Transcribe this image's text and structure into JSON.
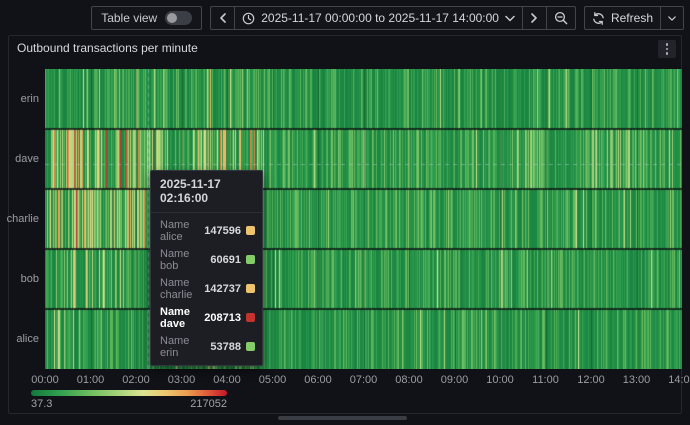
{
  "toolbar": {
    "table_view_label": "Table view",
    "time_range_label": "2025-11-17 00:00:00 to 2025-11-17 14:00:00",
    "refresh_label": "Refresh"
  },
  "panel": {
    "title": "Outbound transactions per minute"
  },
  "tooltip": {
    "timestamp": "2025-11-17 02:16:00",
    "rows": [
      {
        "label": "Name alice",
        "value": "147596",
        "color": "#eec36e",
        "highlight": false
      },
      {
        "label": "Name bob",
        "value": "60691",
        "color": "#84cc67",
        "highlight": false
      },
      {
        "label": "Name charlie",
        "value": "142737",
        "color": "#eec36e",
        "highlight": false
      },
      {
        "label": "Name dave",
        "value": "208713",
        "color": "#c2332d",
        "highlight": true
      },
      {
        "label": "Name erin",
        "value": "53788",
        "color": "#84cc67",
        "highlight": false
      }
    ]
  },
  "legend": {
    "min_label": "37.3",
    "max_label": "217052"
  },
  "chart_data": {
    "type": "heatmap",
    "title": "Outbound transactions per minute",
    "x_start": "2025-11-17 00:00:00",
    "x_end": "2025-11-17 14:00:00",
    "x_tick_labels": [
      "00:00",
      "01:00",
      "02:00",
      "03:00",
      "04:00",
      "05:00",
      "06:00",
      "07:00",
      "08:00",
      "09:00",
      "10:00",
      "11:00",
      "12:00",
      "13:00",
      "14:00"
    ],
    "y_categories_top_to_bottom": [
      "erin",
      "dave",
      "charlie",
      "bob",
      "alice"
    ],
    "value_min": 37.3,
    "value_max": 217052,
    "color_stops": [
      {
        "t": 0.0,
        "color": "#117a3b"
      },
      {
        "t": 0.14,
        "color": "#2f9e4f"
      },
      {
        "t": 0.3,
        "color": "#6dbd5f"
      },
      {
        "t": 0.45,
        "color": "#a7d37a"
      },
      {
        "t": 0.57,
        "color": "#dbe491"
      },
      {
        "t": 0.68,
        "color": "#ecc972"
      },
      {
        "t": 0.8,
        "color": "#ec9b4e"
      },
      {
        "t": 0.9,
        "color": "#e05b3a"
      },
      {
        "t": 1.0,
        "color": "#c4162a"
      }
    ],
    "hovered_point": {
      "time": "2025-11-17 02:16:00",
      "series": {
        "alice": 147596,
        "bob": 60691,
        "charlie": 142737,
        "dave": 208713,
        "erin": 53788
      }
    },
    "crosshair": {
      "x_minute": 136,
      "row": "dave"
    },
    "render_model": {
      "seed": 1337,
      "minutes": 840,
      "rows": [
        {
          "name": "erin",
          "base": [
            8000,
            70000
          ],
          "light_p": 0.02,
          "bursts": [
            [
              45,
              140,
              0.12,
              85000,
              150000
            ],
            [
              210,
              280,
              0.1,
              85000,
              155000
            ]
          ]
        },
        {
          "name": "dave",
          "base": [
            10000,
            80000
          ],
          "light_p": 0.03,
          "bursts": [
            [
              8,
              165,
              0.4,
              95000,
              216000
            ],
            [
              195,
              290,
              0.32,
              90000,
              195000
            ],
            [
              620,
              655,
              0.25,
              80000,
              115000
            ],
            [
              740,
              780,
              0.3,
              80000,
              120000
            ]
          ]
        },
        {
          "name": "charlie",
          "base": [
            9000,
            75000
          ],
          "light_p": 0.025,
          "bursts": [
            [
              0,
              135,
              0.3,
              95000,
              212000
            ],
            [
              135,
              285,
              0.25,
              88000,
              175000
            ]
          ]
        },
        {
          "name": "bob",
          "base": [
            8000,
            70000
          ],
          "light_p": 0.025,
          "bursts": [
            [
              25,
              110,
              0.28,
              80000,
              150000
            ],
            [
              205,
              275,
              0.12,
              80000,
              130000
            ]
          ]
        },
        {
          "name": "alice",
          "base": [
            8000,
            70000
          ],
          "light_p": 0.02,
          "bursts": [
            [
              12,
              48,
              0.22,
              90000,
              170000
            ],
            [
              195,
              285,
              0.18,
              80000,
              150000
            ]
          ]
        }
      ]
    }
  }
}
